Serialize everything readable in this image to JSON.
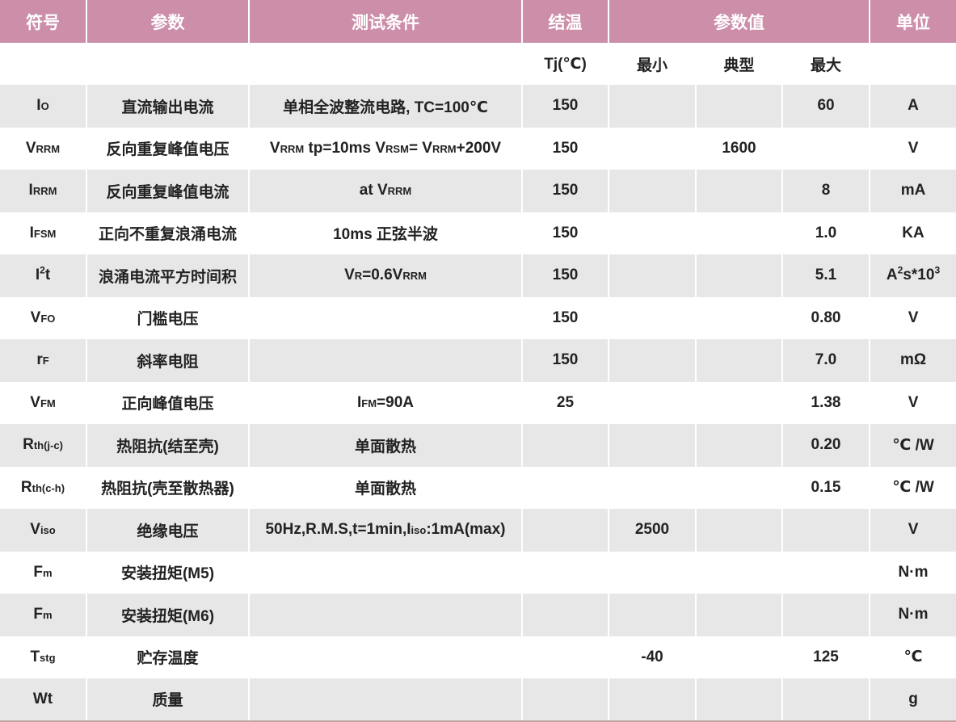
{
  "header": {
    "symbol": "符号",
    "param": "参数",
    "cond": "测试条件",
    "tj": "结温",
    "values": "参数值",
    "unit": "单位"
  },
  "subheader": {
    "tj": "Tj(℃)",
    "min": "最小",
    "typ": "典型",
    "max": "最大"
  },
  "rows": [
    {
      "sym": "I",
      "sub": "O",
      "param": "直流输出电流",
      "cond": "单相全波整流电路, TC=100℃",
      "tj": "150",
      "min": "",
      "typ": "",
      "max": "60",
      "unit": "A"
    },
    {
      "sym": "V",
      "sub": "RRM",
      "param": "反向重复峰值电压",
      "cond": {
        "a": "V",
        "a_sub": "RRM",
        "b": " tp=10ms V",
        "b_sub": "RSM",
        "c": "= V",
        "c_sub": "RRM",
        "d": "+200V"
      },
      "tj": "150",
      "min": "",
      "typ": "1600",
      "max": "",
      "unit": "V"
    },
    {
      "sym": "I",
      "sub": "RRM",
      "param": "反向重复峰值电流",
      "cond": {
        "a": "at V",
        "a_sub": "RRM"
      },
      "tj": "150",
      "min": "",
      "typ": "",
      "max": "8",
      "unit": "mA"
    },
    {
      "sym": "I",
      "sub": "FSM",
      "param": "正向不重复浪涌电流",
      "cond": "10ms 正弦半波",
      "tj": "150",
      "min": "",
      "typ": "",
      "max": "1.0",
      "unit": "KA"
    },
    {
      "sym": "I",
      "sup": "2",
      "sym2": "t",
      "param": "浪涌电流平方时间积",
      "cond": {
        "a": "V",
        "a_sub": "R",
        "b": "=0.6V",
        "b_sub": "RRM"
      },
      "tj": "150",
      "min": "",
      "typ": "",
      "max": "5.1",
      "unit": {
        "a": "A",
        "a_sup": "2",
        "b": "s*10",
        "b_sup": "3"
      }
    },
    {
      "sym": "V",
      "sub": "FO",
      "param": "门槛电压",
      "cond": "",
      "tj": "150",
      "min": "",
      "typ": "",
      "max": "0.80",
      "unit": "V"
    },
    {
      "sym": "r",
      "sub": "F",
      "param": "斜率电阻",
      "cond": "",
      "tj": "150",
      "min": "",
      "typ": "",
      "max": "7.0",
      "unit": "mΩ"
    },
    {
      "sym": "V",
      "sub": "FM",
      "param": "正向峰值电压",
      "cond": {
        "a": "I",
        "a_sub": "FM",
        "b": "=90A"
      },
      "tj": "25",
      "min": "",
      "typ": "",
      "max": "1.38",
      "unit": "V"
    },
    {
      "sym": "R",
      "sub": "th(j-c)",
      "param": "热阻抗(结至壳)",
      "cond": "单面散热",
      "tj": "",
      "min": "",
      "typ": "",
      "max": "0.20",
      "unit": "℃ /W"
    },
    {
      "sym": "R",
      "sub": "th(c-h)",
      "param": "热阻抗(壳至散热器)",
      "cond": "单面散热",
      "tj": "",
      "min": "",
      "typ": "",
      "max": "0.15",
      "unit": "℃ /W"
    },
    {
      "sym": "V",
      "sub": "iso",
      "param": "绝缘电压",
      "cond": {
        "a": "50Hz,R.M.S,t=1min,I",
        "a_sub": "iso",
        "b": ":1mA(max)"
      },
      "tj": "",
      "min": "2500",
      "typ": "",
      "max": "",
      "unit": "V"
    },
    {
      "sym": "F",
      "sub": "m",
      "param": "安装扭矩(M5)",
      "cond": "",
      "tj": "",
      "min": "",
      "typ": "",
      "max": "",
      "unit": "N·m"
    },
    {
      "sym": "F",
      "sub": "m",
      "param": "安装扭矩(M6)",
      "cond": "",
      "tj": "",
      "min": "",
      "typ": "",
      "max": "",
      "unit": "N·m"
    },
    {
      "sym": "T",
      "sub": "stg",
      "param": "贮存温度",
      "cond": "",
      "tj": "",
      "min": "-40",
      "typ": "",
      "max": "125",
      "unit": "℃"
    },
    {
      "sym": "Wt",
      "param": "质量",
      "cond": "",
      "tj": "",
      "min": "",
      "typ": "",
      "max": "",
      "unit": "g"
    }
  ],
  "colors": {
    "header_bg": "#cc8ea9",
    "row_gray": "#e7e7e8",
    "row_white": "#ffffff",
    "bottom_rule": "#c3a39f"
  }
}
